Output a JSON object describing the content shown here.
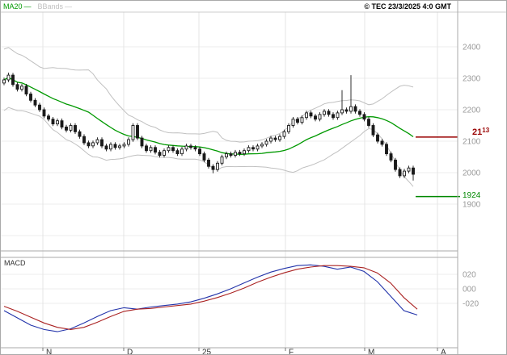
{
  "header": {
    "legend_ma": "MA20",
    "legend_bbands": "BBands",
    "legend_dash": "—",
    "copyright": "© TEC 23/3/2025 4:0 GMT"
  },
  "price_panel": {
    "y_labels": [
      "2400",
      "2300",
      "2200",
      "2100",
      "2000",
      "1900"
    ],
    "red_level": {
      "price": 2113,
      "label_main": "21",
      "label_sup": "13"
    },
    "green_level": {
      "price": 1924,
      "label": "1924"
    }
  },
  "macd_panel": {
    "title": "MACD",
    "y_labels": [
      "020",
      "000",
      "-020"
    ],
    "y_label_values": [
      0.2,
      0.0,
      -0.2
    ]
  },
  "x_axis": {
    "month_labels": [
      "N",
      "D",
      "25",
      "F",
      "M",
      "A"
    ]
  },
  "colors": {
    "ma": "#009900",
    "bbands": "#c0c0c0",
    "candle": "#1a1a1a",
    "macd_line": "#2233aa",
    "signal_line": "#aa2222",
    "grid": "#ececec",
    "month_grid": "#e4e4e4",
    "panel_border": "#aaaaaa",
    "axis_text": "#999999",
    "month_text": "#333333",
    "red_level": "#990000",
    "green_level": "#008800"
  },
  "chart_data": {
    "type": "candlestick",
    "title": "Daily price with MA20 and Bollinger Bands, MACD below",
    "price_ylim": [
      1750,
      2510
    ],
    "price_gridlines": [
      2400,
      2300,
      2200,
      2100,
      2000,
      1900,
      1800
    ],
    "candles_ohlc": [
      [
        2285,
        2302,
        2278,
        2295
      ],
      [
        2295,
        2318,
        2288,
        2310
      ],
      [
        2310,
        2317,
        2273,
        2280
      ],
      [
        2280,
        2287,
        2258,
        2265
      ],
      [
        2265,
        2282,
        2258,
        2275
      ],
      [
        2275,
        2282,
        2243,
        2250
      ],
      [
        2250,
        2257,
        2223,
        2230
      ],
      [
        2230,
        2237,
        2208,
        2215
      ],
      [
        2215,
        2222,
        2193,
        2200
      ],
      [
        2200,
        2207,
        2173,
        2180
      ],
      [
        2180,
        2187,
        2163,
        2170
      ],
      [
        2170,
        2177,
        2148,
        2155
      ],
      [
        2155,
        2172,
        2148,
        2165
      ],
      [
        2165,
        2172,
        2138,
        2145
      ],
      [
        2145,
        2152,
        2128,
        2135
      ],
      [
        2135,
        2157,
        2128,
        2150
      ],
      [
        2150,
        2157,
        2123,
        2130
      ],
      [
        2130,
        2137,
        2108,
        2115
      ],
      [
        2115,
        2122,
        2088,
        2095
      ],
      [
        2095,
        2102,
        2078,
        2085
      ],
      [
        2085,
        2102,
        2078,
        2095
      ],
      [
        2095,
        2112,
        2088,
        2105
      ],
      [
        2105,
        2112,
        2078,
        2085
      ],
      [
        2085,
        2092,
        2068,
        2075
      ],
      [
        2075,
        2097,
        2068,
        2090
      ],
      [
        2090,
        2097,
        2073,
        2080
      ],
      [
        2080,
        2092,
        2073,
        2085
      ],
      [
        2085,
        2097,
        2078,
        2090
      ],
      [
        2090,
        2112,
        2083,
        2105
      ],
      [
        2105,
        2157,
        2098,
        2150
      ],
      [
        2150,
        2157,
        2103,
        2110
      ],
      [
        2110,
        2117,
        2078,
        2085
      ],
      [
        2085,
        2092,
        2063,
        2070
      ],
      [
        2070,
        2087,
        2063,
        2080
      ],
      [
        2080,
        2087,
        2058,
        2065
      ],
      [
        2065,
        2072,
        2048,
        2055
      ],
      [
        2055,
        2077,
        2048,
        2070
      ],
      [
        2070,
        2087,
        2063,
        2080
      ],
      [
        2080,
        2087,
        2063,
        2070
      ],
      [
        2070,
        2077,
        2053,
        2060
      ],
      [
        2060,
        2082,
        2053,
        2075
      ],
      [
        2075,
        2092,
        2068,
        2085
      ],
      [
        2085,
        2092,
        2073,
        2080
      ],
      [
        2080,
        2087,
        2068,
        2075
      ],
      [
        2075,
        2082,
        2053,
        2060
      ],
      [
        2060,
        2067,
        2033,
        2040
      ],
      [
        2040,
        2047,
        2013,
        2020
      ],
      [
        2020,
        2027,
        1998,
        2010
      ],
      [
        2010,
        2037,
        2003,
        2030
      ],
      [
        2030,
        2057,
        2023,
        2050
      ],
      [
        2050,
        2067,
        2043,
        2060
      ],
      [
        2060,
        2067,
        2048,
        2055
      ],
      [
        2055,
        2072,
        2048,
        2065
      ],
      [
        2065,
        2072,
        2053,
        2060
      ],
      [
        2060,
        2077,
        2053,
        2070
      ],
      [
        2070,
        2087,
        2063,
        2080
      ],
      [
        2080,
        2087,
        2068,
        2075
      ],
      [
        2075,
        2092,
        2068,
        2085
      ],
      [
        2085,
        2097,
        2078,
        2090
      ],
      [
        2090,
        2107,
        2083,
        2100
      ],
      [
        2100,
        2117,
        2093,
        2110
      ],
      [
        2110,
        2117,
        2098,
        2105
      ],
      [
        2105,
        2122,
        2098,
        2115
      ],
      [
        2115,
        2137,
        2108,
        2130
      ],
      [
        2130,
        2157,
        2123,
        2150
      ],
      [
        2150,
        2177,
        2143,
        2170
      ],
      [
        2170,
        2177,
        2153,
        2160
      ],
      [
        2160,
        2182,
        2153,
        2175
      ],
      [
        2175,
        2197,
        2168,
        2190
      ],
      [
        2190,
        2197,
        2173,
        2180
      ],
      [
        2180,
        2187,
        2163,
        2170
      ],
      [
        2170,
        2192,
        2163,
        2185
      ],
      [
        2185,
        2202,
        2178,
        2195
      ],
      [
        2195,
        2202,
        2178,
        2185
      ],
      [
        2185,
        2192,
        2168,
        2175
      ],
      [
        2175,
        2197,
        2168,
        2190
      ],
      [
        2190,
        2262,
        2183,
        2200
      ],
      [
        2200,
        2207,
        2188,
        2195
      ],
      [
        2195,
        2310,
        2188,
        2210
      ],
      [
        2210,
        2217,
        2188,
        2195
      ],
      [
        2195,
        2202,
        2178,
        2185
      ],
      [
        2185,
        2192,
        2163,
        2170
      ],
      [
        2170,
        2177,
        2143,
        2150
      ],
      [
        2150,
        2157,
        2113,
        2120
      ],
      [
        2120,
        2127,
        2093,
        2100
      ],
      [
        2100,
        2107,
        2083,
        2090
      ],
      [
        2090,
        2097,
        2053,
        2060
      ],
      [
        2060,
        2067,
        2033,
        2040
      ],
      [
        2040,
        2047,
        2003,
        2010
      ],
      [
        2010,
        2017,
        1983,
        1990
      ],
      [
        1990,
        2012,
        1983,
        2005
      ],
      [
        2005,
        2022,
        1998,
        2015
      ],
      [
        2015,
        2022,
        1975,
        1995
      ]
    ],
    "overlays": [
      "MA20",
      "Bollinger Bands (20, 2)"
    ],
    "levels": {
      "resistance": 2113,
      "support": 1924
    },
    "indicator": {
      "name": "MACD",
      "ylim": [
        -0.81,
        0.43
      ],
      "macd": [
        -0.3,
        -0.4,
        -0.5,
        -0.56,
        -0.59,
        -0.55,
        -0.47,
        -0.38,
        -0.3,
        -0.26,
        -0.28,
        -0.25,
        -0.23,
        -0.21,
        -0.18,
        -0.13,
        -0.07,
        0.0,
        0.08,
        0.16,
        0.23,
        0.28,
        0.32,
        0.33,
        0.31,
        0.27,
        0.3,
        0.24,
        0.1,
        -0.1,
        -0.3,
        -0.36
      ],
      "signal": [
        -0.24,
        -0.31,
        -0.39,
        -0.47,
        -0.53,
        -0.56,
        -0.53,
        -0.46,
        -0.38,
        -0.31,
        -0.28,
        -0.27,
        -0.25,
        -0.23,
        -0.21,
        -0.17,
        -0.12,
        -0.06,
        0.01,
        0.09,
        0.16,
        0.22,
        0.27,
        0.3,
        0.32,
        0.32,
        0.31,
        0.29,
        0.22,
        0.08,
        -0.12,
        -0.28
      ]
    }
  }
}
